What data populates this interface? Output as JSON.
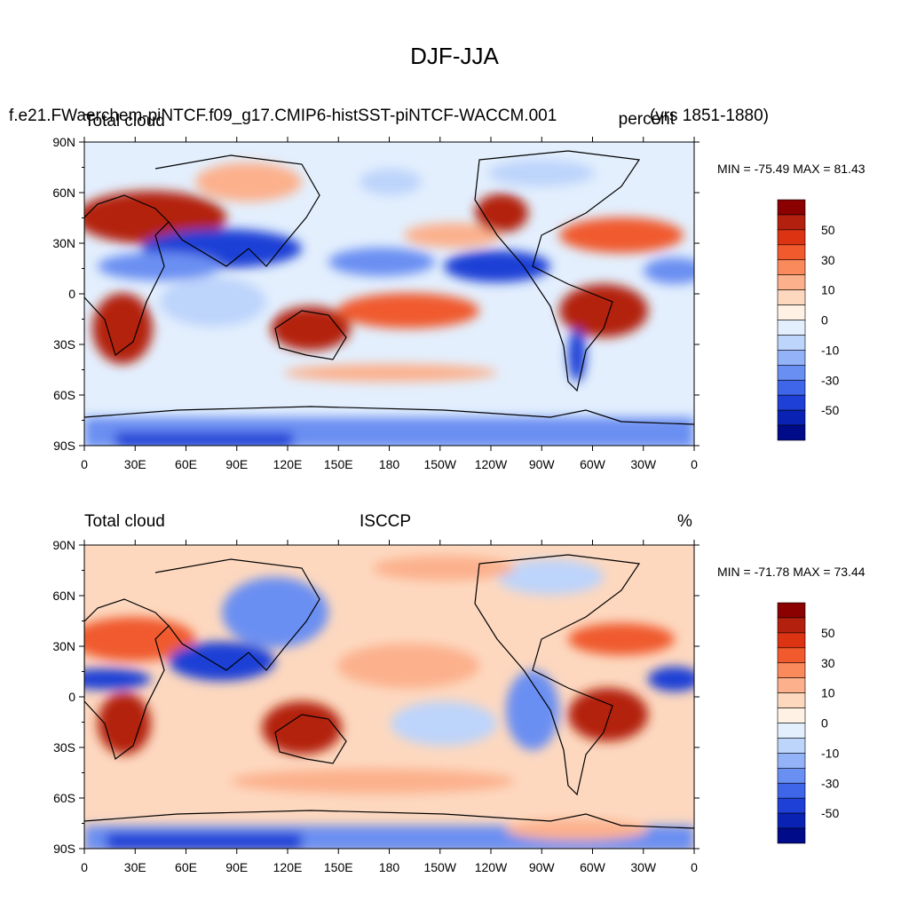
{
  "title": "DJF-JJA",
  "panels": [
    {
      "case_name": "f.e21.FWaerchem-piNTCF.f09_g17.CMIP6-histSST-piNTCF-WACCM.001",
      "left_label": "Total cloud",
      "right_label": "(yrs 1851-1880)",
      "right_label_overlap": "percent",
      "min_max": "MIN = -75.49 MAX =  81.43"
    },
    {
      "left_label": "Total cloud",
      "center_label": "ISCCP",
      "right_label": "%",
      "min_max": "MIN = -71.78 MAX =  73.44"
    }
  ],
  "axes": {
    "lat_labels": [
      "90N",
      "60N",
      "30N",
      "0",
      "30S",
      "60S",
      "90S"
    ],
    "lon_labels": [
      "0",
      "30E",
      "60E",
      "90E",
      "120E",
      "150E",
      "180",
      "150W",
      "120W",
      "90W",
      "60W",
      "30W",
      "0"
    ]
  },
  "colorbar": {
    "colors": [
      "#8b0000",
      "#b3200d",
      "#dc3412",
      "#f05a2d",
      "#fa8a5c",
      "#fcb08c",
      "#fdd8bf",
      "#fff2e5",
      "#e3effd",
      "#bdd4fb",
      "#93b2f7",
      "#6a8ff2",
      "#3f66e8",
      "#1e40d6",
      "#0a22b4",
      "#000b8a"
    ],
    "labels": [
      "50",
      "30",
      "10",
      "0",
      "-10",
      "-30",
      "-50"
    ]
  },
  "map_colors": {
    "strong_pos": "#b3200d",
    "pos": "#f05a2d",
    "weak_pos": "#fcb08c",
    "faint_pos": "#fdd8bf",
    "neutral": "#fff2e5",
    "faint_neg": "#e3effd",
    "weak_neg": "#bdd4fb",
    "neg": "#6a8ff2",
    "strong_neg": "#1e40d6",
    "coastline": "#000000"
  }
}
